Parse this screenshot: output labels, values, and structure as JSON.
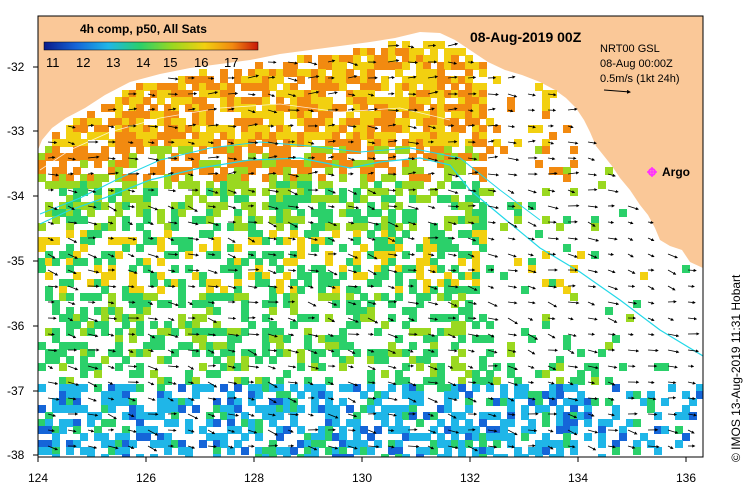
{
  "legend": {
    "title": "4h comp, p50, All Sats",
    "ticks": [
      "11",
      "12",
      "13",
      "14",
      "15",
      "16",
      "17"
    ],
    "colors": [
      "#0a1a8a",
      "#1565d8",
      "#1fb6e8",
      "#2bd06a",
      "#9ad820",
      "#f2d010",
      "#f28a10",
      "#c81808"
    ]
  },
  "map": {
    "date_title": "08-Aug-2019 00Z",
    "lat_labels": [
      "-32",
      "-33",
      "-34",
      "-35",
      "-36",
      "-37",
      "-38"
    ],
    "lon_labels": [
      "124",
      "126",
      "128",
      "130",
      "132",
      "134",
      "136"
    ],
    "land_color": "#fac898",
    "argo_label": "Argo",
    "argo_color": "#ff30ff"
  },
  "info": {
    "line1": "NRT00 GSL",
    "line2": "08-Aug 00:00Z",
    "line3": "0.5m/s (1kt 24h)"
  },
  "credit": "© IMOS 13-Aug-2019 11:31 Hobart"
}
